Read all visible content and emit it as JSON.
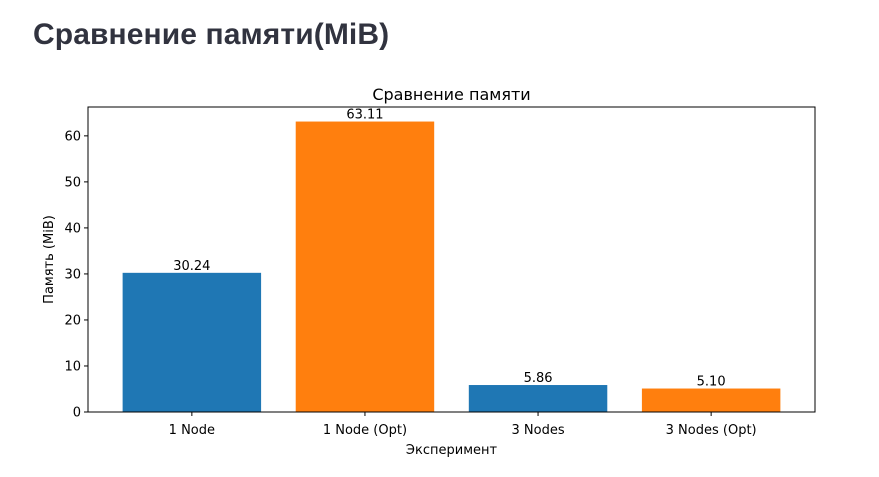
{
  "page": {
    "title": "Сравнение памяти(MiB)"
  },
  "chart_data": {
    "type": "bar",
    "title": "Сравнение памяти",
    "xlabel": "Эксперимент",
    "ylabel": "Память (MiB)",
    "categories": [
      "1 Node",
      "1 Node (Opt)",
      "3 Nodes",
      "3 Nodes (Opt)"
    ],
    "values": [
      30.24,
      63.11,
      5.86,
      5.1
    ],
    "data_labels": [
      "30.24",
      "63.11",
      "5.86",
      "5.10"
    ],
    "bar_colors": [
      "#1f77b4",
      "#ff7f0e",
      "#1f77b4",
      "#ff7f0e"
    ],
    "ylim": [
      0,
      66.27
    ],
    "yticks": [
      0,
      10,
      20,
      30,
      40,
      50,
      60
    ],
    "grid": false,
    "legend": "none"
  }
}
